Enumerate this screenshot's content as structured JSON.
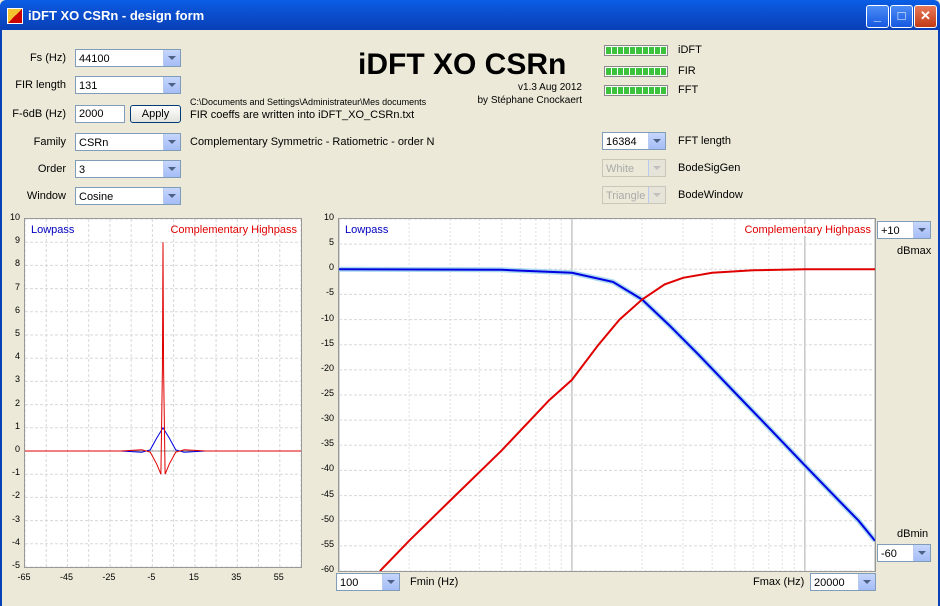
{
  "window": {
    "title": "iDFT XO CSRn - design form",
    "minimize": "_",
    "maximize": "□",
    "close": "✕"
  },
  "fields": {
    "fs": {
      "label": "Fs (Hz)",
      "value": "44100"
    },
    "fir_length": {
      "label": "FIR length",
      "value": "131"
    },
    "f6db": {
      "label": "F-6dB (Hz)",
      "value": "2000"
    },
    "apply": "Apply",
    "family": {
      "label": "Family",
      "value": "CSRn"
    },
    "order": {
      "label": "Order",
      "value": "3"
    },
    "window": {
      "label": "Window",
      "value": "Cosine"
    }
  },
  "info": {
    "path": "C:\\Documents and Settings\\Administrateur\\Mes documents",
    "coeffs": "FIR coeffs are written into iDFT_XO_CSRn.txt",
    "family_desc": "Complementary Symmetric - Ratiometric - order N"
  },
  "header": {
    "title": "iDFT XO CSRn",
    "version": "v1.3 Aug 2012",
    "author": "by Stéphane Cnockaert"
  },
  "progress": [
    {
      "label": "iDFT",
      "value": 1.0
    },
    {
      "label": "FIR",
      "value": 1.0
    },
    {
      "label": "FFT",
      "value": 1.0
    }
  ],
  "fft": {
    "length_value": "16384",
    "length_label": "FFT length",
    "siggen_value": "White",
    "siggen_label": "BodeSigGen",
    "window_value": "Triangle",
    "window_label": "BodeWindow"
  },
  "bode_controls": {
    "dbmax_value": "+10",
    "dbmax_label": "dBmax",
    "dbmin_value": "-60",
    "dbmin_label": "dBmin",
    "fmin_value": "100",
    "fmin_label": "Fmin (Hz)",
    "fmax_label": "Fmax (Hz)",
    "fmax_value": "20000"
  },
  "colors": {
    "lowpass": "#0000e0",
    "highpass": "#e00000",
    "lowpass_measured": "#a8d8f0"
  },
  "chart_data": [
    {
      "type": "line",
      "xlim": [
        -65,
        65
      ],
      "ylim": [
        -5,
        10
      ],
      "x_ticks": [
        "-65",
        "-45",
        "-25",
        "-5",
        "15",
        "35",
        "55"
      ],
      "y_ticks": [
        "10",
        "9",
        "8",
        "7",
        "6",
        "5",
        "4",
        "3",
        "2",
        "1",
        "0",
        "-1",
        "-2",
        "-3",
        "-4",
        "-5"
      ],
      "grid": true,
      "series": [
        {
          "name": "Lowpass",
          "color": "#0000e0",
          "points": [
            [
              -65,
              0
            ],
            [
              -20,
              0
            ],
            [
              -10,
              -0.05
            ],
            [
              -6,
              0.05
            ],
            [
              -3,
              0.55
            ],
            [
              0,
              1.0
            ],
            [
              3,
              0.55
            ],
            [
              6,
              0.05
            ],
            [
              10,
              -0.05
            ],
            [
              20,
              0
            ],
            [
              65,
              0
            ]
          ]
        },
        {
          "name": "Complementary Highpass",
          "color": "#e00000",
          "points": [
            [
              -65,
              0
            ],
            [
              -20,
              0
            ],
            [
              -10,
              0.05
            ],
            [
              -6,
              -0.05
            ],
            [
              -3,
              -0.55
            ],
            [
              -1,
              -1.0
            ],
            [
              -0.3,
              3.5
            ],
            [
              0,
              9.0
            ],
            [
              0.3,
              3.5
            ],
            [
              1,
              -1.0
            ],
            [
              3,
              -0.55
            ],
            [
              6,
              -0.05
            ],
            [
              10,
              0.05
            ],
            [
              20,
              0
            ],
            [
              65,
              0
            ]
          ]
        }
      ]
    },
    {
      "type": "line",
      "x_scale": "log",
      "xlim": [
        100,
        20000
      ],
      "ylim": [
        -60,
        10
      ],
      "y_ticks": [
        "10",
        "5",
        "0",
        "-5",
        "-10",
        "-15",
        "-20",
        "-25",
        "-30",
        "-35",
        "-40",
        "-45",
        "-50",
        "-55",
        "-60"
      ],
      "grid": true,
      "series": [
        {
          "name": "Lowpass",
          "color": "#0000e0",
          "points": [
            [
              100,
              0
            ],
            [
              500,
              -0.1
            ],
            [
              1000,
              -0.7
            ],
            [
              1500,
              -2.5
            ],
            [
              2000,
              -6
            ],
            [
              2600,
              -11
            ],
            [
              3500,
              -17
            ],
            [
              5000,
              -24.5
            ],
            [
              7000,
              -31.5
            ],
            [
              10000,
              -39
            ],
            [
              14000,
              -46
            ],
            [
              17000,
              -50
            ],
            [
              20000,
              -54
            ]
          ]
        },
        {
          "name": "Complementary Highpass",
          "color": "#e00000",
          "points": [
            [
              150,
              -60
            ],
            [
              200,
              -54
            ],
            [
              300,
              -46
            ],
            [
              500,
              -36
            ],
            [
              800,
              -26
            ],
            [
              1000,
              -22
            ],
            [
              1300,
              -15
            ],
            [
              1600,
              -10
            ],
            [
              2000,
              -6
            ],
            [
              2500,
              -3
            ],
            [
              3000,
              -1.7
            ],
            [
              4000,
              -0.7
            ],
            [
              6000,
              -0.2
            ],
            [
              10000,
              0
            ],
            [
              20000,
              0
            ]
          ]
        }
      ]
    }
  ]
}
